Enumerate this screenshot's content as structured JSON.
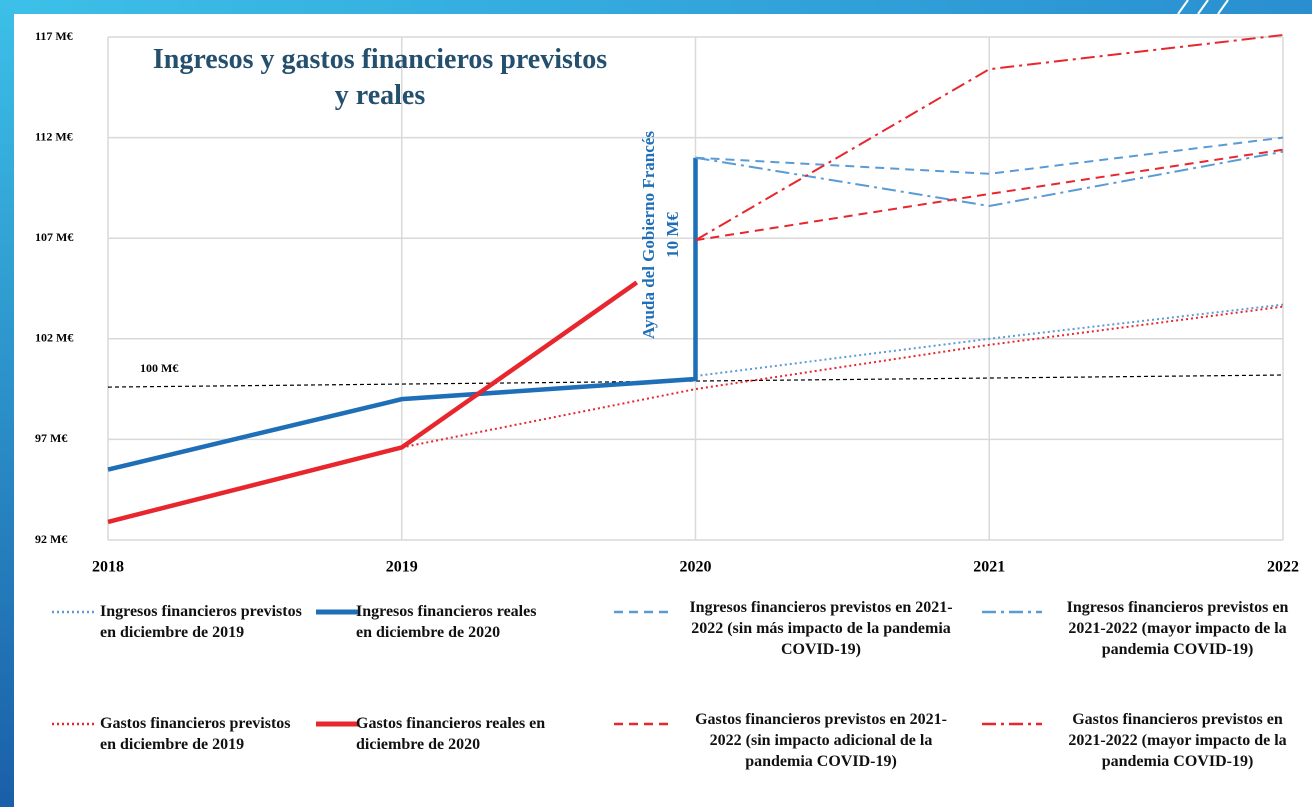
{
  "chart_data": {
    "type": "line",
    "title": "Ingresos y gastos financieros previstos y reales",
    "xlim": [
      2018,
      2022
    ],
    "xticks": [
      2018,
      2019,
      2020,
      2021,
      2022
    ],
    "ylim": [
      92,
      117
    ],
    "yticks": [
      {
        "value": 92,
        "label": "92 M€"
      },
      {
        "value": 97,
        "label": "97 M€"
      },
      {
        "value": 102,
        "label": "102 M€"
      },
      {
        "value": 107,
        "label": "107 M€"
      },
      {
        "value": 112,
        "label": "112 M€"
      },
      {
        "value": 117,
        "label": "117 M€"
      }
    ],
    "grid": true,
    "series": [
      {
        "name": "Ingresos financieros previstos en diciembre de 2019",
        "color": "#5b9bd5",
        "dash": "dotted",
        "x": [
          2020,
          2021,
          2022
        ],
        "values": [
          100.15,
          102.0,
          103.7
        ]
      },
      {
        "name": "Ingresos financieros reales en diciembre de 2020",
        "color": "#1f6fb8",
        "dash": "solid",
        "x": [
          2018,
          2019,
          2020,
          2020
        ],
        "values": [
          95.5,
          99.0,
          100.0,
          111.0
        ]
      },
      {
        "name": "Ingresos financieros previstos en 2021-2022 (sin más impacto de la pandemia COVID-19)",
        "color": "#5b9bd5",
        "dash": "dashed",
        "x": [
          2020,
          2021,
          2022
        ],
        "values": [
          111.0,
          110.2,
          112.0
        ]
      },
      {
        "name": "Ingresos financieros previstos en 2021-2022 (mayor impacto de la pandemia COVID-19)",
        "color": "#5b9bd5",
        "dash": "dashdot",
        "x": [
          2020,
          2021,
          2022
        ],
        "values": [
          111.0,
          108.6,
          111.3
        ]
      },
      {
        "name": "Gastos financieros previstos en diciembre de 2019",
        "color": "#e8262e",
        "dash": "dotted",
        "x": [
          2019,
          2020,
          2021,
          2022
        ],
        "values": [
          96.6,
          99.5,
          101.7,
          103.6
        ]
      },
      {
        "name": "Gastos financieros reales en diciembre de 2020",
        "color": "#e8262e",
        "dash": "solid",
        "x": [
          2018,
          2019,
          2019.8
        ],
        "values": [
          92.9,
          96.6,
          104.8
        ]
      },
      {
        "name": "Gastos financieros previstos en 2021-2022 (sin impacto adicional de la pandemia COVID-19)",
        "color": "#e8262e",
        "dash": "dashed",
        "x": [
          2020,
          2021,
          2022
        ],
        "values": [
          106.9,
          109.2,
          111.4
        ]
      },
      {
        "name": "Gastos financieros previstos en 2021-2022 (mayor impacto de la pandemia COVID-19)",
        "color": "#e8262e",
        "dash": "dashdot",
        "x": [
          2020,
          2021,
          2022
        ],
        "values": [
          106.9,
          115.4,
          117.1
        ]
      }
    ],
    "reference_line": {
      "label": "100 M€",
      "color": "#000000",
      "x": [
        2018,
        2022
      ],
      "values": [
        99.6,
        100.2
      ]
    },
    "annotation": {
      "lines": [
        "Ayuda del Gobierno Francés",
        "10 M€"
      ],
      "color": "#1f6fb8"
    }
  }
}
